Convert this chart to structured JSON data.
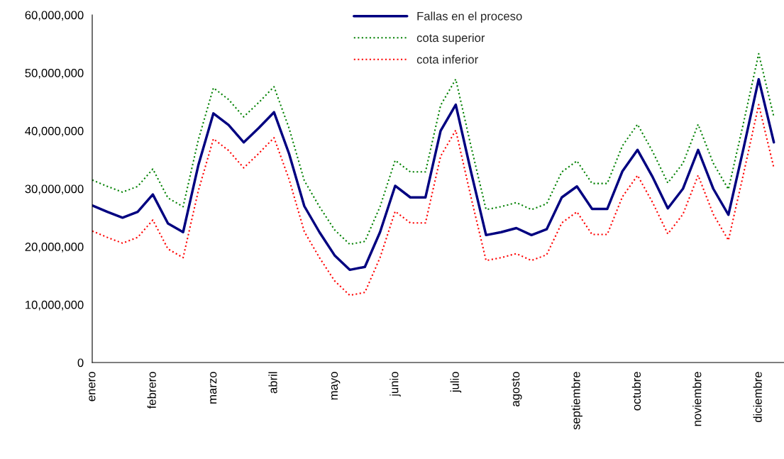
{
  "chart_data": {
    "type": "line",
    "categories": [
      "enero",
      null,
      null,
      null,
      "febrero",
      null,
      null,
      null,
      "marzo",
      null,
      null,
      null,
      "abril",
      null,
      null,
      null,
      "mayo",
      null,
      null,
      null,
      "junio",
      null,
      null,
      null,
      "julio",
      null,
      null,
      null,
      "agosto",
      null,
      null,
      null,
      "septiembre",
      null,
      null,
      null,
      "octubre",
      null,
      null,
      null,
      "noviembre",
      null,
      null,
      null,
      "diciembre",
      null
    ],
    "series": [
      {
        "name": "Fallas en el proceso",
        "color": "#000080",
        "line_style": "solid",
        "values": [
          27100000,
          26000000,
          25000000,
          26000000,
          29000000,
          24000000,
          22500000,
          34000000,
          43000000,
          41000000,
          38000000,
          40500000,
          43200000,
          36000000,
          27000000,
          22500000,
          18500000,
          16000000,
          16500000,
          22500000,
          30500000,
          28500000,
          28500000,
          40000000,
          44500000,
          33000000,
          22000000,
          22500000,
          23200000,
          22000000,
          23000000,
          28500000,
          30400000,
          26500000,
          26500000,
          33000000,
          36700000,
          32000000,
          26600000,
          30000000,
          36700000,
          30000000,
          25500000,
          37000000,
          48900000,
          38000000
        ]
      },
      {
        "name": "cota superior",
        "color": "#008000",
        "line_style": "dotted",
        "values": [
          31500000,
          30400000,
          29400000,
          30400000,
          33400000,
          28400000,
          26900000,
          38400000,
          47400000,
          45400000,
          42400000,
          44900000,
          47600000,
          40400000,
          31400000,
          26900000,
          22900000,
          20400000,
          20900000,
          26900000,
          34900000,
          32900000,
          32900000,
          44400000,
          48900000,
          37400000,
          26400000,
          26900000,
          27600000,
          26400000,
          27400000,
          32900000,
          34800000,
          30900000,
          30900000,
          37400000,
          41100000,
          36400000,
          31000000,
          34400000,
          41100000,
          34400000,
          29900000,
          41400000,
          53300000,
          42400000
        ]
      },
      {
        "name": "cota inferior",
        "color": "#ff0000",
        "line_style": "dotted",
        "values": [
          22700000,
          21600000,
          20600000,
          21600000,
          24600000,
          19600000,
          18100000,
          29600000,
          38600000,
          36600000,
          33600000,
          36100000,
          38800000,
          31600000,
          22600000,
          18100000,
          14100000,
          11600000,
          12100000,
          18100000,
          26100000,
          24100000,
          24100000,
          35600000,
          40100000,
          28600000,
          17600000,
          18100000,
          18800000,
          17600000,
          18600000,
          24100000,
          26000000,
          22100000,
          22100000,
          28600000,
          32300000,
          27600000,
          22200000,
          25600000,
          32300000,
          25600000,
          21100000,
          32600000,
          44500000,
          33600000
        ]
      }
    ],
    "ylim": [
      0,
      60000000
    ],
    "yticks": [
      0,
      {
        "value": 10000000,
        "label": "10,000,000"
      },
      {
        "value": 20000000,
        "label": "20,000,000"
      },
      {
        "value": 30000000,
        "label": "30,000,000"
      },
      {
        "value": 40000000,
        "label": "40,000,000"
      },
      {
        "value": 50000000,
        "label": "50,000,000"
      },
      {
        "value": 60000000,
        "label": "60,000,000"
      }
    ],
    "legend": "top",
    "grid": false,
    "marker": "none"
  }
}
